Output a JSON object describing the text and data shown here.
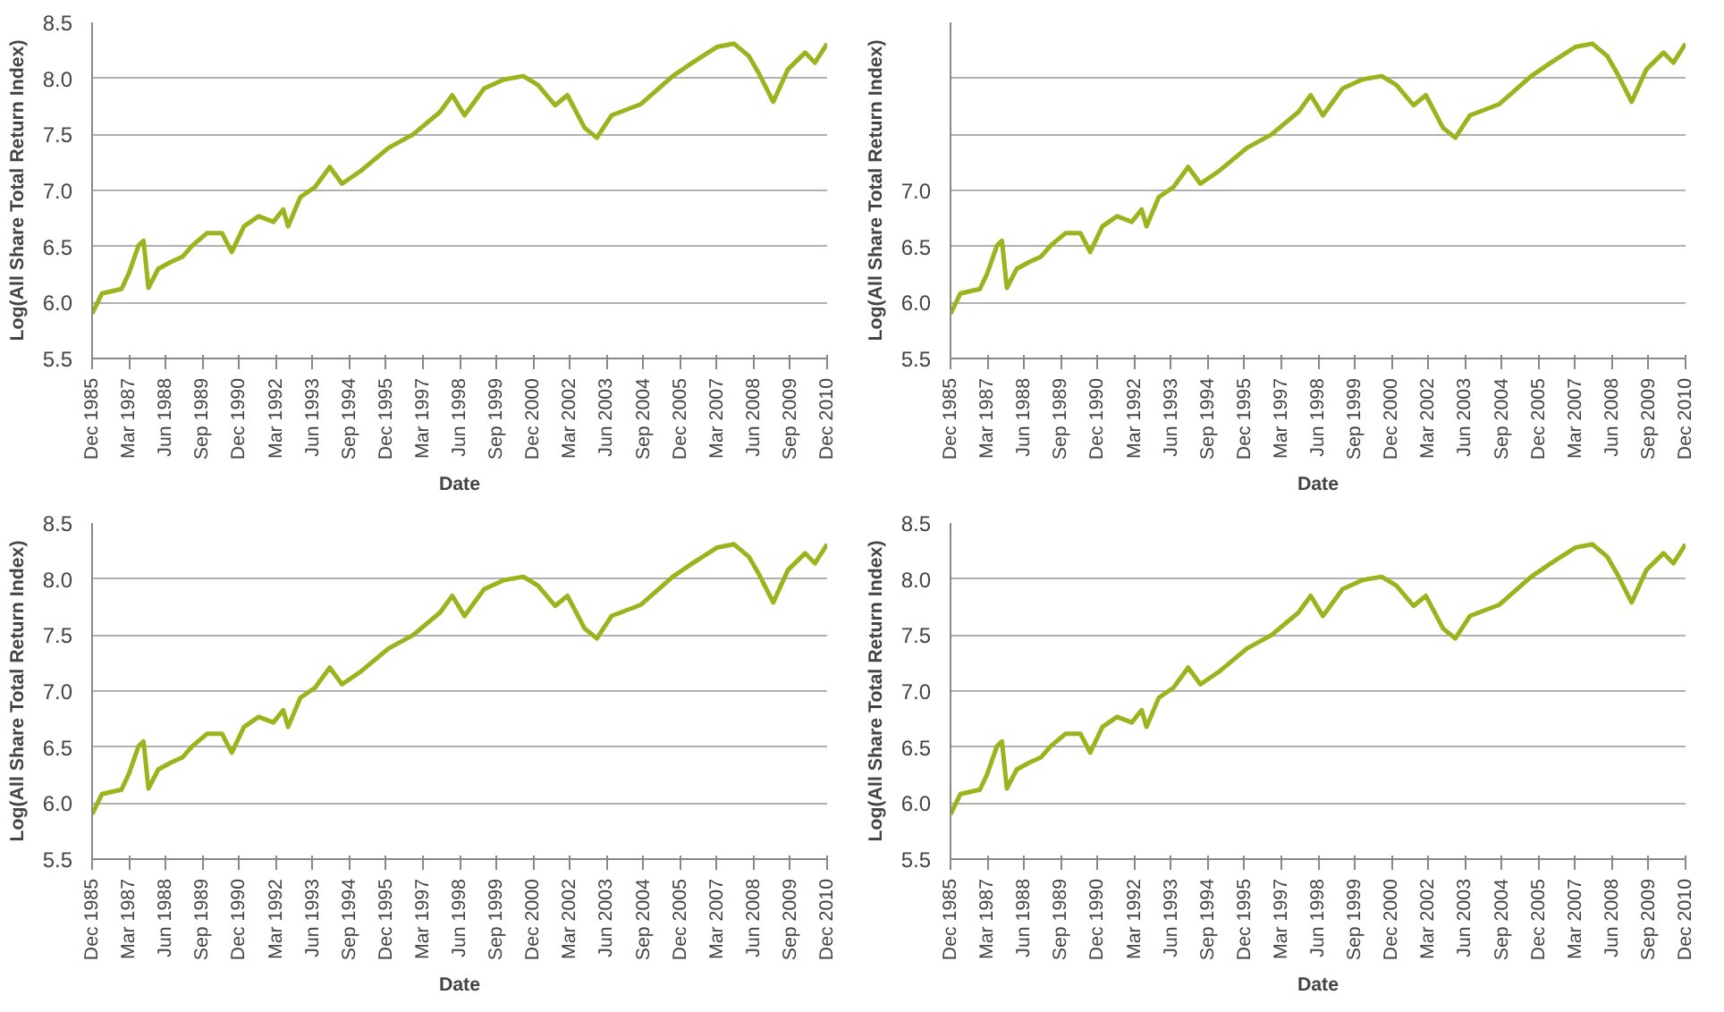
{
  "chart_data": [
    {
      "type": "line",
      "xlabel": "Date",
      "ylabel": "Log(All Share Total Return Index)",
      "ylim": [
        5.5,
        8.5
      ],
      "yticks": [
        5.5,
        {
          "value": 6,
          "label": "6.0"
        },
        6.5,
        {
          "value": 7,
          "label": "7.0"
        },
        7.5,
        {
          "value": 8,
          "label": "8.0"
        },
        8.5
      ],
      "grid": "y",
      "xlim": [
        "1985-12",
        "2010-12"
      ],
      "xticks": [
        {
          "value": "1985-12",
          "label": "Dec 1985"
        },
        {
          "value": "1987-03",
          "label": "Mar 1987"
        },
        {
          "value": "1988-06",
          "label": "Jun 1988"
        },
        {
          "value": "1989-09",
          "label": "Sep 1989"
        },
        {
          "value": "1990-12",
          "label": "Dec 1990"
        },
        {
          "value": "1992-03",
          "label": "Mar 1992"
        },
        {
          "value": "1993-06",
          "label": "Jun 1993"
        },
        {
          "value": "1994-09",
          "label": "Sep 1994"
        },
        {
          "value": "1995-12",
          "label": "Dec 1995"
        },
        {
          "value": "1997-03",
          "label": "Mar 1997"
        },
        {
          "value": "1998-06",
          "label": "Jun 1998"
        },
        {
          "value": "1999-09",
          "label": "Sep 1999"
        },
        {
          "value": "2000-12",
          "label": "Dec 2000"
        },
        {
          "value": "2002-03",
          "label": "Mar 2002"
        },
        {
          "value": "2003-06",
          "label": "Jun 2003"
        },
        {
          "value": "2004-09",
          "label": "Sep 2004"
        },
        {
          "value": "2005-12",
          "label": "Dec 2005"
        },
        {
          "value": "2007-03",
          "label": "Mar 2007"
        },
        {
          "value": "2008-06",
          "label": "Jun 2008"
        },
        {
          "value": "2009-09",
          "label": "Sep 2009"
        },
        {
          "value": "2010-12",
          "label": "Dec 2010"
        }
      ],
      "x": [
        "1985-12",
        "1986-04",
        "1986-08",
        "1986-12",
        "1987-03",
        "1987-07",
        "1987-09",
        "1987-11",
        "1988-03",
        "1988-08",
        "1989-01",
        "1989-05",
        "1989-11",
        "1990-05",
        "1990-09",
        "1991-02",
        "1991-08",
        "1992-02",
        "1992-06",
        "1992-08",
        "1993-01",
        "1993-07",
        "1994-01",
        "1994-06",
        "1995-02",
        "1996-01",
        "1996-11",
        "1997-10",
        "1998-03",
        "1998-08",
        "1999-04",
        "1999-12",
        "2000-08",
        "2001-02",
        "2001-09",
        "2002-02",
        "2002-09",
        "2003-02",
        "2003-08",
        "2004-08",
        "2005-09",
        "2006-05",
        "2007-03",
        "2007-10",
        "2008-04",
        "2008-08",
        "2009-02",
        "2009-08",
        "2010-03",
        "2010-07",
        "2010-12"
      ],
      "series": [
        {
          "color": "#9bb31c",
          "values": [
            5.9,
            6.08,
            6.1,
            6.12,
            6.26,
            6.51,
            6.55,
            6.13,
            6.3,
            6.36,
            6.41,
            6.51,
            6.62,
            6.62,
            6.45,
            6.68,
            6.77,
            6.72,
            6.83,
            6.68,
            6.94,
            7.03,
            7.21,
            7.06,
            7.18,
            7.38,
            7.5,
            7.7,
            7.85,
            7.67,
            7.91,
            7.99,
            8.02,
            7.94,
            7.76,
            7.85,
            7.56,
            7.47,
            7.67,
            7.77,
            8.02,
            8.14,
            8.28,
            8.31,
            8.2,
            8.05,
            7.79,
            8.08,
            8.23,
            8.14,
            8.31
          ]
        }
      ]
    },
    {
      "type": "line",
      "xlabel": "Date",
      "ylabel": "Log(All Share Total Return Index)",
      "ylim": [
        5.5,
        8.5
      ],
      "yticks": [
        5.5,
        {
          "value": 6,
          "label": "6.0"
        },
        6.5,
        {
          "value": 7,
          "label": "7.0"
        },
        {
          "value": 7.5,
          "label": null
        },
        {
          "value": 8,
          "label": null
        }
      ],
      "grid": "y",
      "xlim": [
        "1985-12",
        "2010-12"
      ],
      "xticks": [
        {
          "value": "1985-12",
          "label": "Dec 1985"
        },
        {
          "value": "1987-03",
          "label": "Mar 1987"
        },
        {
          "value": "1988-06",
          "label": "Jun 1988"
        },
        {
          "value": "1989-09",
          "label": "Sep 1989"
        },
        {
          "value": "1990-12",
          "label": "Dec 1990"
        },
        {
          "value": "1992-03",
          "label": "Mar 1992"
        },
        {
          "value": "1993-06",
          "label": "Jun 1993"
        },
        {
          "value": "1994-09",
          "label": "Sep 1994"
        },
        {
          "value": "1995-12",
          "label": "Dec 1995"
        },
        {
          "value": "1997-03",
          "label": "Mar 1997"
        },
        {
          "value": "1998-06",
          "label": "Jun 1998"
        },
        {
          "value": "1999-09",
          "label": "Sep 1999"
        },
        {
          "value": "2000-12",
          "label": "Dec 2000"
        },
        {
          "value": "2002-03",
          "label": "Mar 2002"
        },
        {
          "value": "2003-06",
          "label": "Jun 2003"
        },
        {
          "value": "2004-09",
          "label": "Sep 2004"
        },
        {
          "value": "2005-12",
          "label": "Dec 2005"
        },
        {
          "value": "2007-03",
          "label": "Mar 2007"
        },
        {
          "value": "2008-06",
          "label": "Jun 2008"
        },
        {
          "value": "2009-09",
          "label": "Sep 2009"
        },
        {
          "value": "2010-12",
          "label": "Dec 2010"
        }
      ],
      "x": [
        "1985-12",
        "1986-04",
        "1986-08",
        "1986-12",
        "1987-03",
        "1987-07",
        "1987-09",
        "1987-11",
        "1988-03",
        "1988-08",
        "1989-01",
        "1989-05",
        "1989-11",
        "1990-05",
        "1990-09",
        "1991-02",
        "1991-08",
        "1992-02",
        "1992-06",
        "1992-08",
        "1993-01",
        "1993-07",
        "1994-01",
        "1994-06",
        "1995-02",
        "1996-01",
        "1996-11",
        "1997-10",
        "1998-03",
        "1998-08",
        "1999-04",
        "1999-12",
        "2000-08",
        "2001-02",
        "2001-09",
        "2002-02",
        "2002-09",
        "2003-02",
        "2003-08",
        "2004-08",
        "2005-09",
        "2006-05",
        "2007-03",
        "2007-10",
        "2008-04",
        "2008-08",
        "2009-02",
        "2009-08",
        "2010-03",
        "2010-07",
        "2010-12"
      ],
      "series": [
        {
          "color": "#9bb31c",
          "values": [
            5.9,
            6.08,
            6.1,
            6.12,
            6.26,
            6.51,
            6.55,
            6.13,
            6.3,
            6.36,
            6.41,
            6.51,
            6.62,
            6.62,
            6.45,
            6.68,
            6.77,
            6.72,
            6.83,
            6.68,
            6.94,
            7.03,
            7.21,
            7.06,
            7.18,
            7.38,
            7.5,
            7.7,
            7.85,
            7.67,
            7.91,
            7.99,
            8.02,
            7.94,
            7.76,
            7.85,
            7.56,
            7.47,
            7.67,
            7.77,
            8.02,
            8.14,
            8.28,
            8.31,
            8.2,
            8.05,
            7.79,
            8.08,
            8.23,
            8.14,
            8.31
          ]
        }
      ]
    },
    {
      "type": "line",
      "xlabel": "Date",
      "ylabel": "Log(All Share Total Return Index)",
      "ylim": [
        5.5,
        8.5
      ],
      "yticks": [
        5.5,
        {
          "value": 6,
          "label": "6.0"
        },
        6.5,
        {
          "value": 7,
          "label": "7.0"
        },
        7.5,
        {
          "value": 8,
          "label": "8.0"
        },
        8.5
      ],
      "grid": "y",
      "xlim": [
        "1985-12",
        "2010-12"
      ],
      "xticks": [
        {
          "value": "1985-12",
          "label": "Dec 1985"
        },
        {
          "value": "1987-03",
          "label": "Mar 1987"
        },
        {
          "value": "1988-06",
          "label": "Jun 1988"
        },
        {
          "value": "1989-09",
          "label": "Sep 1989"
        },
        {
          "value": "1990-12",
          "label": "Dec 1990"
        },
        {
          "value": "1992-03",
          "label": "Mar 1992"
        },
        {
          "value": "1993-06",
          "label": "Jun 1993"
        },
        {
          "value": "1994-09",
          "label": "Sep 1994"
        },
        {
          "value": "1995-12",
          "label": "Dec 1995"
        },
        {
          "value": "1997-03",
          "label": "Mar 1997"
        },
        {
          "value": "1998-06",
          "label": "Jun 1998"
        },
        {
          "value": "1999-09",
          "label": "Sep 1999"
        },
        {
          "value": "2000-12",
          "label": "Dec 2000"
        },
        {
          "value": "2002-03",
          "label": "Mar 2002"
        },
        {
          "value": "2003-06",
          "label": "Jun 2003"
        },
        {
          "value": "2004-09",
          "label": "Sep 2004"
        },
        {
          "value": "2005-12",
          "label": "Dec 2005"
        },
        {
          "value": "2007-03",
          "label": "Mar 2007"
        },
        {
          "value": "2008-06",
          "label": "Jun 2008"
        },
        {
          "value": "2009-09",
          "label": "Sep 2009"
        },
        {
          "value": "2010-12",
          "label": "Dec 2010"
        }
      ],
      "x": [
        "1985-12",
        "1986-04",
        "1986-08",
        "1986-12",
        "1987-03",
        "1987-07",
        "1987-09",
        "1987-11",
        "1988-03",
        "1988-08",
        "1989-01",
        "1989-05",
        "1989-11",
        "1990-05",
        "1990-09",
        "1991-02",
        "1991-08",
        "1992-02",
        "1992-06",
        "1992-08",
        "1993-01",
        "1993-07",
        "1994-01",
        "1994-06",
        "1995-02",
        "1996-01",
        "1996-11",
        "1997-10",
        "1998-03",
        "1998-08",
        "1999-04",
        "1999-12",
        "2000-08",
        "2001-02",
        "2001-09",
        "2002-02",
        "2002-09",
        "2003-02",
        "2003-08",
        "2004-08",
        "2005-09",
        "2006-05",
        "2007-03",
        "2007-10",
        "2008-04",
        "2008-08",
        "2009-02",
        "2009-08",
        "2010-03",
        "2010-07",
        "2010-12"
      ],
      "series": [
        {
          "color": "#9bb31c",
          "values": [
            5.9,
            6.08,
            6.1,
            6.12,
            6.26,
            6.51,
            6.55,
            6.13,
            6.3,
            6.36,
            6.41,
            6.51,
            6.62,
            6.62,
            6.45,
            6.68,
            6.77,
            6.72,
            6.83,
            6.68,
            6.94,
            7.03,
            7.21,
            7.06,
            7.18,
            7.38,
            7.5,
            7.7,
            7.85,
            7.67,
            7.91,
            7.99,
            8.02,
            7.94,
            7.76,
            7.85,
            7.56,
            7.47,
            7.67,
            7.77,
            8.02,
            8.14,
            8.28,
            8.31,
            8.2,
            8.05,
            7.79,
            8.08,
            8.23,
            8.14,
            8.31
          ]
        }
      ]
    },
    {
      "type": "line",
      "xlabel": "Date",
      "ylabel": "Log(All Share Total Return Index)",
      "ylim": [
        5.5,
        8.5
      ],
      "yticks": [
        5.5,
        {
          "value": 6,
          "label": "6.0"
        },
        6.5,
        {
          "value": 7,
          "label": "7.0"
        },
        7.5,
        {
          "value": 8,
          "label": "8.0"
        },
        8.5
      ],
      "grid": "y",
      "xlim": [
        "1985-12",
        "2010-12"
      ],
      "xticks": [
        {
          "value": "1985-12",
          "label": "Dec 1985"
        },
        {
          "value": "1987-03",
          "label": "Mar 1987"
        },
        {
          "value": "1988-06",
          "label": "Jun 1988"
        },
        {
          "value": "1989-09",
          "label": "Sep 1989"
        },
        {
          "value": "1990-12",
          "label": "Dec 1990"
        },
        {
          "value": "1992-03",
          "label": "Mar 1992"
        },
        {
          "value": "1993-06",
          "label": "Jun 1993"
        },
        {
          "value": "1994-09",
          "label": "Sep 1994"
        },
        {
          "value": "1995-12",
          "label": "Dec 1995"
        },
        {
          "value": "1997-03",
          "label": "Mar 1997"
        },
        {
          "value": "1998-06",
          "label": "Jun 1998"
        },
        {
          "value": "1999-09",
          "label": "Sep 1999"
        },
        {
          "value": "2000-12",
          "label": "Dec 2000"
        },
        {
          "value": "2002-03",
          "label": "Mar 2002"
        },
        {
          "value": "2003-06",
          "label": "Jun 2003"
        },
        {
          "value": "2004-09",
          "label": "Sep 2004"
        },
        {
          "value": "2005-12",
          "label": "Dec 2005"
        },
        {
          "value": "2007-03",
          "label": "Mar 2007"
        },
        {
          "value": "2008-06",
          "label": "Jun 2008"
        },
        {
          "value": "2009-09",
          "label": "Sep 2009"
        },
        {
          "value": "2010-12",
          "label": "Dec 2010"
        }
      ],
      "x": [
        "1985-12",
        "1986-04",
        "1986-08",
        "1986-12",
        "1987-03",
        "1987-07",
        "1987-09",
        "1987-11",
        "1988-03",
        "1988-08",
        "1989-01",
        "1989-05",
        "1989-11",
        "1990-05",
        "1990-09",
        "1991-02",
        "1991-08",
        "1992-02",
        "1992-06",
        "1992-08",
        "1993-01",
        "1993-07",
        "1994-01",
        "1994-06",
        "1995-02",
        "1996-01",
        "1996-11",
        "1997-10",
        "1998-03",
        "1998-08",
        "1999-04",
        "1999-12",
        "2000-08",
        "2001-02",
        "2001-09",
        "2002-02",
        "2002-09",
        "2003-02",
        "2003-08",
        "2004-08",
        "2005-09",
        "2006-05",
        "2007-03",
        "2007-10",
        "2008-04",
        "2008-08",
        "2009-02",
        "2009-08",
        "2010-03",
        "2010-07",
        "2010-12"
      ],
      "series": [
        {
          "color": "#9bb31c",
          "values": [
            5.9,
            6.08,
            6.1,
            6.12,
            6.26,
            6.51,
            6.55,
            6.13,
            6.3,
            6.36,
            6.41,
            6.51,
            6.62,
            6.62,
            6.45,
            6.68,
            6.77,
            6.72,
            6.83,
            6.68,
            6.94,
            7.03,
            7.21,
            7.06,
            7.18,
            7.38,
            7.5,
            7.7,
            7.85,
            7.67,
            7.91,
            7.99,
            8.02,
            7.94,
            7.76,
            7.85,
            7.56,
            7.47,
            7.67,
            7.77,
            8.02,
            8.14,
            8.28,
            8.31,
            8.2,
            8.05,
            7.79,
            8.08,
            8.23,
            8.14,
            8.31
          ]
        }
      ]
    }
  ]
}
